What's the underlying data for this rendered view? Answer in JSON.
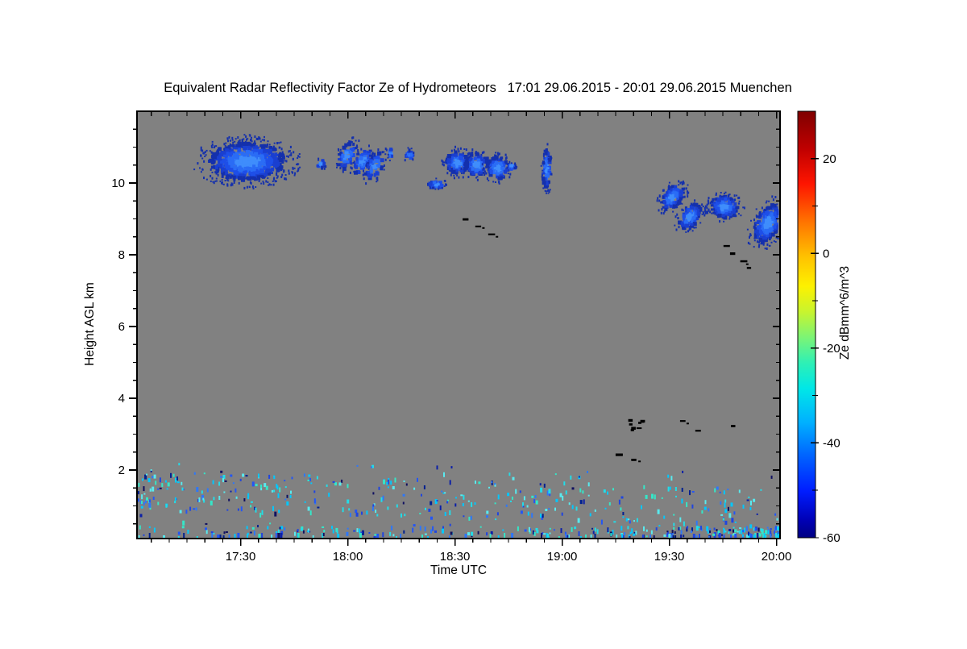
{
  "title": "Equivalent Radar Reflectivity Factor Ze of Hydrometeors   17:01 29.06.2015 - 20:01 29.06.2015 Muenchen",
  "chart_data": {
    "type": "heatmap",
    "title": "Equivalent Radar Reflectivity Factor Ze of Hydrometeors   17:01 29.06.2015 - 20:01 29.06.2015 Muenchen",
    "station": "Muenchen",
    "time_start": "17:01 29.06.2015",
    "time_end": "20:01 29.06.2015",
    "xlabel": "Time UTC",
    "ylabel": "Height AGL km",
    "x_start": "17:01",
    "x_end": "20:01",
    "x_tick_labels": [
      "17:30",
      "18:00",
      "18:30",
      "19:00",
      "19:30",
      "20:00"
    ],
    "x_minor_step_min": 5,
    "ylim": [
      0.1,
      12.0
    ],
    "y_ticks": [
      2,
      4,
      6,
      8,
      10
    ],
    "y_minor_step_km": 0.5,
    "grid": false,
    "legend_position": "colorbar-right",
    "no_echo_color": "#818181",
    "frame_color": "#000000",
    "seed": 20150629,
    "colorbar": {
      "label": "Ze dBmm^6/m^3",
      "range": [
        -60,
        30
      ],
      "major_ticks": [
        20,
        0,
        -20,
        -40,
        -60
      ],
      "minor_ticks": [
        10,
        -10,
        -30,
        -50
      ],
      "colormap": "rainbow-jet",
      "stops": [
        [
          0.0,
          "#7f0000"
        ],
        [
          0.09,
          "#c10000"
        ],
        [
          0.17,
          "#fe1500"
        ],
        [
          0.26,
          "#ff7400"
        ],
        [
          0.34,
          "#ffc100"
        ],
        [
          0.41,
          "#fdf100"
        ],
        [
          0.47,
          "#c8f42e"
        ],
        [
          0.53,
          "#7cf475"
        ],
        [
          0.59,
          "#2ef0b5"
        ],
        [
          0.65,
          "#00e7e7"
        ],
        [
          0.73,
          "#00b0ff"
        ],
        [
          0.81,
          "#0061ff"
        ],
        [
          0.89,
          "#001dff"
        ],
        [
          0.96,
          "#0000b4"
        ],
        [
          1.0,
          "#000082"
        ]
      ]
    },
    "cloud_palette": [
      "#3f8dfc",
      "#2a6cf5",
      "#1e4fe8",
      "#1a3fd0",
      "#1430ac"
    ],
    "speckle_colors": {
      "cyan": [
        "#23dce8",
        "#35e6c8",
        "#00c8ff",
        "#59e9ee"
      ],
      "blue": [
        "#2456f5",
        "#2e77f8",
        "#1f45e0"
      ],
      "navy": [
        "#0b1fa8",
        "#002090",
        "#101060"
      ]
    },
    "echo_regions": [
      {
        "id": "cirrus-1",
        "t0": "17:22",
        "t1": "17:41",
        "h0": 10.1,
        "h1": 11.15,
        "ze_db": -42,
        "kind": "cloud",
        "streaks": 1,
        "rot": 0,
        "drift": 0,
        "density": 1.0
      },
      {
        "id": "cirrus-2",
        "t0": "17:51",
        "t1": "17:53",
        "h0": 10.45,
        "h1": 10.7,
        "ze_db": -46,
        "kind": "cloud",
        "streaks": 1,
        "rot": 0,
        "drift": 0,
        "density": 0.8
      },
      {
        "id": "cirrus-3",
        "t0": "17:58",
        "t1": "18:10",
        "h0": 10.1,
        "h1": 11.2,
        "ze_db": -44,
        "kind": "cloud",
        "streaks": 3,
        "rot": 25,
        "drift": 0.35,
        "density": 0.5
      },
      {
        "id": "cirrus-4a",
        "t0": "18:12",
        "t1": "18:13",
        "h0": 10.65,
        "h1": 10.95,
        "ze_db": -47,
        "kind": "cloud",
        "streaks": 1,
        "rot": 0,
        "drift": 0,
        "density": 0.7
      },
      {
        "id": "cirrus-4b",
        "t0": "18:16",
        "t1": "18:18",
        "h0": 10.6,
        "h1": 10.9,
        "ze_db": -47,
        "kind": "cloud",
        "streaks": 1,
        "rot": 0,
        "drift": 0,
        "density": 0.7
      },
      {
        "id": "cirrus-5",
        "t0": "18:23",
        "t1": "18:27",
        "h0": 9.85,
        "h1": 10.1,
        "ze_db": -45,
        "kind": "cloud",
        "streaks": 1,
        "rot": 0,
        "drift": 0,
        "density": 0.9
      },
      {
        "id": "cirrus-6",
        "t0": "18:28",
        "t1": "18:45",
        "h0": 10.1,
        "h1": 10.95,
        "ze_db": -43,
        "kind": "cloud",
        "streaks": 3,
        "rot": 15,
        "drift": 0.3,
        "density": 0.85
      },
      {
        "id": "cirrus-7",
        "t0": "18:45",
        "t1": "18:47",
        "h0": 10.35,
        "h1": 10.55,
        "ze_db": -46,
        "kind": "cloud",
        "streaks": 1,
        "rot": 0,
        "drift": 0,
        "density": 0.8
      },
      {
        "id": "cirrus-8",
        "t0": "18:55",
        "t1": "18:57",
        "h0": 9.9,
        "h1": 10.95,
        "ze_db": -45,
        "kind": "cloud",
        "streaks": 1,
        "rot": 0,
        "drift": 0,
        "density": 0.8
      },
      {
        "id": "cirrus-9",
        "t0": "19:29",
        "t1": "19:38",
        "h0": 8.8,
        "h1": 9.9,
        "ze_db": -43,
        "kind": "cloud",
        "streaks": 2,
        "rot": 38,
        "drift": 1.0,
        "density": 0.8
      },
      {
        "id": "cirrus-10",
        "t0": "19:42",
        "t1": "19:49",
        "h0": 9.0,
        "h1": 9.6,
        "ze_db": -43,
        "kind": "cloud",
        "streaks": 1,
        "rot": 15,
        "drift": 0,
        "density": 0.85
      },
      {
        "id": "cirrus-11",
        "t0": "19:55",
        "t1": "20:01",
        "h0": 8.3,
        "h1": 9.45,
        "ze_db": -42,
        "kind": "cloud",
        "streaks": 1,
        "rot": 28,
        "drift": 0,
        "density": 0.9
      }
    ],
    "black_marks": [
      {
        "id": "black-1",
        "t0": "18:32",
        "t1": "18:39",
        "h0": 8.6,
        "h1": 9.0,
        "style": "dashes",
        "count": 3
      },
      {
        "id": "black-2",
        "t0": "19:45",
        "t1": "19:52",
        "h0": 7.65,
        "h1": 8.25,
        "style": "dashes",
        "count": 4
      },
      {
        "id": "black-3",
        "t0": "19:18",
        "t1": "19:24",
        "h0": 3.05,
        "h1": 3.45,
        "style": "scatter",
        "count": 8
      },
      {
        "id": "black-4",
        "t0": "19:33",
        "t1": "19:37",
        "h0": 3.1,
        "h1": 3.4,
        "style": "dashes",
        "count": 2
      },
      {
        "id": "black-5",
        "t0": "19:47",
        "t1": "19:48",
        "h0": 3.2,
        "h1": 3.3,
        "style": "dashes",
        "count": 1
      },
      {
        "id": "black-6",
        "t0": "19:15",
        "t1": "19:19",
        "h0": 2.3,
        "h1": 2.45,
        "style": "dashes",
        "count": 2
      }
    ],
    "speckle_bands": [
      {
        "id": "boundary-layer-upper",
        "t0": "17:01",
        "t1": "20:01",
        "h0": 0.95,
        "h1": 2.05,
        "count": 310,
        "weight": "left",
        "slope_km_per_hr": -0.18,
        "ze_db_range": [
          -55,
          -32
        ],
        "mix": {
          "cyan": 0.6,
          "blue": 0.28,
          "navy": 0.12
        }
      },
      {
        "id": "near-surface",
        "t0": "17:01",
        "t1": "20:01",
        "h0": 0.08,
        "h1": 0.45,
        "count": 300,
        "weight": "right",
        "slope_km_per_hr": 0,
        "ze_db_range": [
          -55,
          -35
        ],
        "mix": {
          "cyan": 0.45,
          "blue": 0.35,
          "navy": 0.2
        }
      },
      {
        "id": "sparse-mid",
        "t0": "17:01",
        "t1": "20:01",
        "h0": 0.45,
        "h1": 2.2,
        "count": 65,
        "weight": "flat",
        "slope_km_per_hr": 0,
        "ze_db_range": [
          -55,
          -38
        ],
        "mix": {
          "cyan": 0.5,
          "blue": 0.3,
          "navy": 0.2
        }
      }
    ]
  }
}
